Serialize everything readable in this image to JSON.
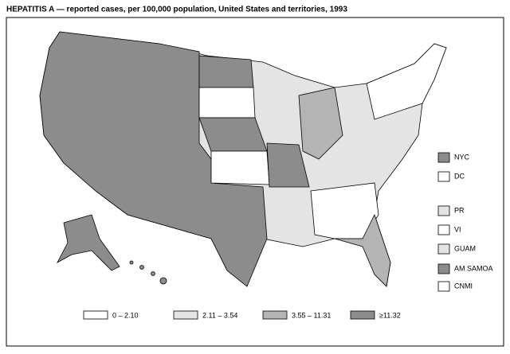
{
  "title": "HEPATITIS A — reported cases, per 100,000 population, United States and territories, 1993",
  "territories": [
    {
      "label": "NYC",
      "color": "#8c8c8c"
    },
    {
      "label": "DC",
      "color": "#ffffff"
    },
    {
      "label": "PR",
      "color": "#e4e4e4"
    },
    {
      "label": "VI",
      "color": "#ffffff"
    },
    {
      "label": "GUAM",
      "color": "#e4e4e4"
    },
    {
      "label": "AM SAMOA",
      "color": "#8c8c8c"
    },
    {
      "label": "CNMI",
      "color": "#ffffff"
    }
  ],
  "legend": [
    {
      "label": "0 – 2.10",
      "color": "#ffffff"
    },
    {
      "label": "2.11 – 3.54",
      "color": "#e4e4e4"
    },
    {
      "label": "3.55 – 11.31",
      "color": "#b4b4b4"
    },
    {
      "label": "≥11.32",
      "color": "#8c8c8c"
    }
  ]
}
